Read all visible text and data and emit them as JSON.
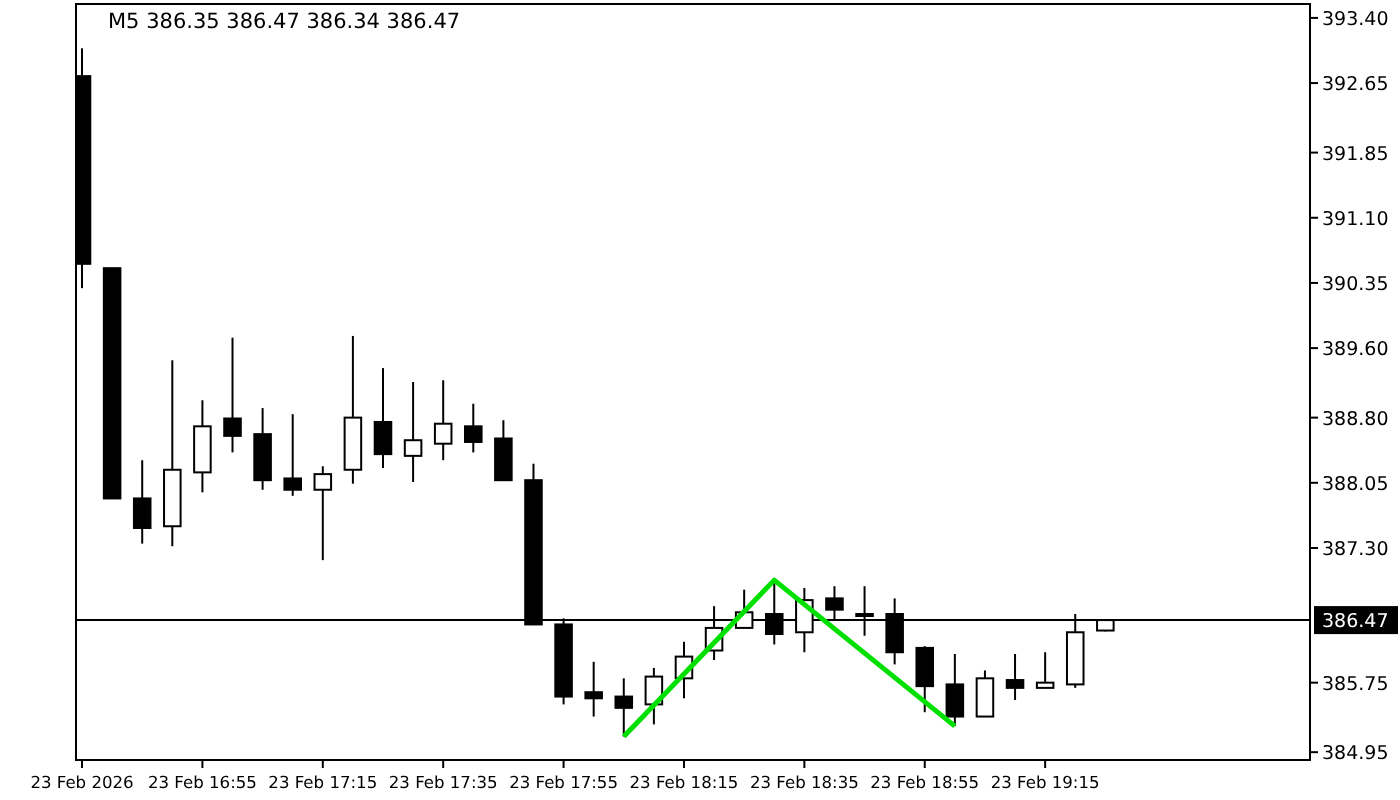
{
  "chart_data": {
    "type": "candlestick",
    "title": "M5  386.35 386.47 386.34 386.47",
    "x": [
      "2026-02-23T16:35",
      "2026-02-23T16:40",
      "2026-02-23T16:45",
      "2026-02-23T16:50",
      "2026-02-23T16:55",
      "2026-02-23T17:00",
      "2026-02-23T17:05",
      "2026-02-23T17:10",
      "2026-02-23T17:15",
      "2026-02-23T17:20",
      "2026-02-23T17:25",
      "2026-02-23T17:30",
      "2026-02-23T17:35",
      "2026-02-23T17:40",
      "2026-02-23T17:45",
      "2026-02-23T17:50",
      "2026-02-23T17:55",
      "2026-02-23T18:00",
      "2026-02-23T18:05",
      "2026-02-23T18:10",
      "2026-02-23T18:15",
      "2026-02-23T18:20",
      "2026-02-23T18:25",
      "2026-02-23T18:30",
      "2026-02-23T18:35",
      "2026-02-23T18:40",
      "2026-02-23T18:45",
      "2026-02-23T18:50",
      "2026-02-23T18:55",
      "2026-02-23T19:00",
      "2026-02-23T19:05",
      "2026-02-23T19:10",
      "2026-02-23T19:15",
      "2026-02-23T19:20",
      "2026-02-23T19:25"
    ],
    "ohlc": [
      [
        392.73,
        393.05,
        390.29,
        390.57
      ],
      [
        390.52,
        390.52,
        387.87,
        387.87
      ],
      [
        387.87,
        388.31,
        387.35,
        387.53
      ],
      [
        387.55,
        389.46,
        387.32,
        388.2
      ],
      [
        388.17,
        389.0,
        387.94,
        388.7
      ],
      [
        388.79,
        389.72,
        388.4,
        388.59
      ],
      [
        388.61,
        388.91,
        387.97,
        388.08
      ],
      [
        388.1,
        388.84,
        387.9,
        387.97
      ],
      [
        387.97,
        388.24,
        387.16,
        388.15
      ],
      [
        388.2,
        389.74,
        388.04,
        388.8
      ],
      [
        388.75,
        389.37,
        388.22,
        388.38
      ],
      [
        388.36,
        389.21,
        388.06,
        388.54
      ],
      [
        388.5,
        389.23,
        388.31,
        388.73
      ],
      [
        388.7,
        388.96,
        388.4,
        388.52
      ],
      [
        388.56,
        388.77,
        388.08,
        388.08
      ],
      [
        388.08,
        388.27,
        386.42,
        386.42
      ],
      [
        386.42,
        386.49,
        385.5,
        385.59
      ],
      [
        385.64,
        385.99,
        385.36,
        385.57
      ],
      [
        385.59,
        385.8,
        385.13,
        385.46
      ],
      [
        385.5,
        385.92,
        385.27,
        385.82
      ],
      [
        385.8,
        386.22,
        385.57,
        386.05
      ],
      [
        386.12,
        386.63,
        386.01,
        386.38
      ],
      [
        386.38,
        386.82,
        386.38,
        386.56
      ],
      [
        386.54,
        386.93,
        386.19,
        386.31
      ],
      [
        386.33,
        386.84,
        386.1,
        386.7
      ],
      [
        386.72,
        386.86,
        386.47,
        386.59
      ],
      [
        386.54,
        386.86,
        386.29,
        386.52
      ],
      [
        386.54,
        386.72,
        385.96,
        386.1
      ],
      [
        386.15,
        386.17,
        385.41,
        385.71
      ],
      [
        385.73,
        386.08,
        385.25,
        385.36
      ],
      [
        385.36,
        385.89,
        385.36,
        385.8
      ],
      [
        385.78,
        386.08,
        385.55,
        385.69
      ],
      [
        385.69,
        386.1,
        385.69,
        385.75
      ],
      [
        385.73,
        386.54,
        385.69,
        386.33
      ],
      [
        386.35,
        386.47,
        386.34,
        386.47
      ]
    ],
    "series": [
      {
        "type": "line",
        "color": "#00e000",
        "x": [
          "2026-02-23T18:05",
          "2026-02-23T18:30",
          "2026-02-23T19:00"
        ],
        "values": [
          385.13,
          386.93,
          385.25
        ]
      }
    ],
    "xlim": [
      "2026-02-23T16:34",
      "2026-02-23T19:59"
    ],
    "xticks": [
      {
        "value": "2026-02-23T16:35",
        "label": "23 Feb 2026"
      },
      {
        "value": "2026-02-23T16:55",
        "label": "23 Feb 16:55"
      },
      {
        "value": "2026-02-23T17:15",
        "label": "23 Feb 17:15"
      },
      {
        "value": "2026-02-23T17:35",
        "label": "23 Feb 17:35"
      },
      {
        "value": "2026-02-23T17:55",
        "label": "23 Feb 17:55"
      },
      {
        "value": "2026-02-23T18:15",
        "label": "23 Feb 18:15"
      },
      {
        "value": "2026-02-23T18:35",
        "label": "23 Feb 18:35"
      },
      {
        "value": "2026-02-23T18:55",
        "label": "23 Feb 18:55"
      },
      {
        "value": "2026-02-23T19:15",
        "label": "23 Feb 19:15"
      }
    ],
    "ylim": [
      384.86,
      393.56
    ],
    "yticks": [
      {
        "value": 393.4,
        "label": "393.40"
      },
      {
        "value": 392.65,
        "label": "392.65"
      },
      {
        "value": 391.85,
        "label": "391.85"
      },
      {
        "value": 391.1,
        "label": "391.10"
      },
      {
        "value": 390.35,
        "label": "390.35"
      },
      {
        "value": 389.6,
        "label": "389.60"
      },
      {
        "value": 388.8,
        "label": "388.80"
      },
      {
        "value": 388.05,
        "label": "388.05"
      },
      {
        "value": 387.3,
        "label": "387.30"
      },
      {
        "value": 385.75,
        "label": "385.75"
      },
      {
        "value": 384.95,
        "label": "384.95"
      }
    ],
    "ref_lines": [
      {
        "axis": "y",
        "value": 386.47,
        "label": "386.47",
        "color": "#000000"
      }
    ],
    "marker": "none",
    "line_style": "solid"
  }
}
